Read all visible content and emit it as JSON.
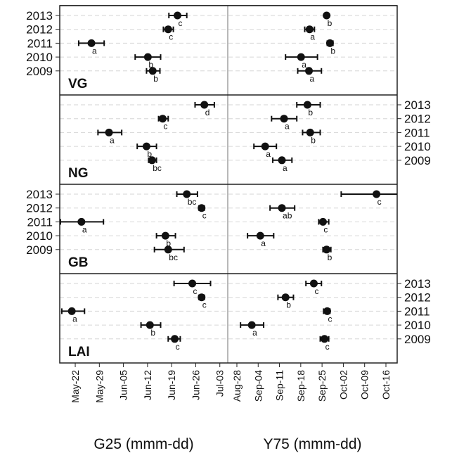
{
  "chart_data": {
    "type": "dotplot",
    "categories": [
      "2013",
      "2012",
      "2011",
      "2010",
      "2009"
    ],
    "columns": [
      {
        "xlabel": "G25 (mmm-dd)",
        "xlim": [
          137.5,
          186.3
        ],
        "xticks": [
          {
            "value": 142,
            "label": "May-22"
          },
          {
            "value": 149,
            "label": "May-29"
          },
          {
            "value": 156,
            "label": "Jun-05"
          },
          {
            "value": 163,
            "label": "Jun-12"
          },
          {
            "value": 170,
            "label": "Jun-19"
          },
          {
            "value": 177,
            "label": "Jun-26"
          },
          {
            "value": 184,
            "label": "Jul-03"
          }
        ]
      },
      {
        "xlabel": "Y75 (mmm-dd)",
        "xlim": [
          237,
          292.7
        ],
        "xticks": [
          {
            "value": 240,
            "label": "Aug-28"
          },
          {
            "value": 247,
            "label": "Sep-04"
          },
          {
            "value": 254,
            "label": "Sep-11"
          },
          {
            "value": 261,
            "label": "Sep-18"
          },
          {
            "value": 268,
            "label": "Sep-25"
          },
          {
            "value": 275,
            "label": "Oct-02"
          },
          {
            "value": 282,
            "label": "Oct-09"
          },
          {
            "value": 289,
            "label": "Oct-16"
          }
        ]
      }
    ],
    "rows": [
      {
        "label": "VG",
        "panels": [
          {
            "values": [
              171.7,
              169.0,
              146.7,
              163.1,
              164.5
            ],
            "low": [
              169.2,
              167.6,
              143.0,
              159.4,
              162.7
            ],
            "high": [
              174.4,
              170.5,
              150.4,
              166.8,
              166.6
            ],
            "letters": [
              "c",
              "c",
              "a",
              "b",
              "b"
            ]
          },
          {
            "values": [
              269.5,
              263.9,
              270.6,
              261.1,
              263.7
            ],
            "low": [
              268.8,
              262.3,
              269.7,
              256.0,
              260.0
            ],
            "high": [
              270.2,
              265.5,
              271.6,
              266.5,
              267.8
            ],
            "letters": [
              "b",
              "a",
              "b",
              "a",
              "a"
            ]
          }
        ]
      },
      {
        "label": "NG",
        "panels": [
          {
            "values": [
              179.5,
              167.4,
              151.8,
              162.7,
              164.3
            ],
            "low": [
              176.8,
              166.2,
              148.6,
              160.0,
              163.3
            ],
            "high": [
              182.4,
              169.0,
              155.5,
              165.6,
              165.6
            ],
            "letters": [
              "d",
              "c",
              "a",
              "b",
              "bc"
            ]
          },
          {
            "values": [
              263.2,
              255.5,
              264.1,
              249.3,
              254.8
            ],
            "low": [
              259.7,
              251.4,
              261.6,
              245.6,
              251.8
            ],
            "high": [
              267.4,
              259.7,
              267.4,
              253.0,
              258.1
            ],
            "letters": [
              "b",
              "a",
              "b",
              "a",
              "a"
            ]
          }
        ]
      },
      {
        "label": "GB",
        "panels": [
          {
            "values": [
              174.4,
              178.7,
              143.8,
              168.2,
              169.0
            ],
            "low": [
              171.5,
              177.9,
              137.7,
              165.6,
              165.0
            ],
            "high": [
              177.5,
              179.5,
              150.2,
              171.1,
              173.6
            ],
            "letters": [
              "bc",
              "c",
              "a",
              "b",
              "bc"
            ]
          },
          {
            "values": [
              285.9,
              254.8,
              268.3,
              247.7,
              269.5
            ],
            "low": [
              274.3,
              250.9,
              266.9,
              243.5,
              268.3
            ],
            "high": [
              294,
              259.0,
              270.2,
              252.1,
              270.9
            ],
            "letters": [
              "c",
              "ab",
              "c",
              "a",
              "b"
            ]
          }
        ]
      },
      {
        "label": "LAI",
        "panels": [
          {
            "values": [
              176.0,
              178.7,
              141.0,
              163.7,
              170.9
            ],
            "low": [
              170.7,
              177.9,
              138.1,
              161.1,
              169.0
            ],
            "high": [
              181.3,
              179.5,
              144.7,
              166.8,
              172.5
            ],
            "letters": [
              "c",
              "c",
              "a",
              "b",
              "c"
            ]
          },
          {
            "values": [
              265.3,
              256.0,
              269.7,
              244.9,
              268.8
            ],
            "low": [
              262.7,
              253.5,
              268.5,
              241.2,
              267.4
            ],
            "high": [
              267.8,
              258.6,
              270.6,
              248.8,
              270.2
            ],
            "letters": [
              "c",
              "b",
              "c",
              "a",
              "c"
            ]
          }
        ]
      }
    ]
  }
}
